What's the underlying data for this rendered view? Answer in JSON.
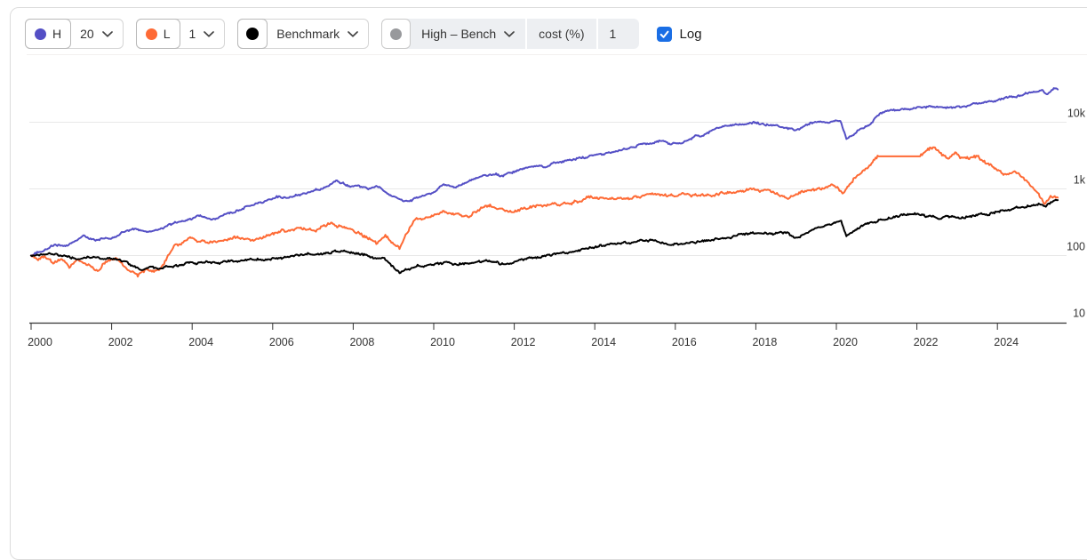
{
  "toolbar": {
    "controls": [
      {
        "id": "high",
        "letter": "H",
        "dot_color": "#544fc5",
        "value": "20"
      },
      {
        "id": "low",
        "letter": "L",
        "dot_color": "#fe6a35",
        "value": "1"
      },
      {
        "id": "benchmark",
        "label": "Benchmark",
        "dot_color": "#000000"
      },
      {
        "id": "high-minus-bench",
        "label": "High – Bench",
        "dot_color": "#98999c",
        "cost_label": "cost (%)",
        "cost_value": "1"
      }
    ],
    "log": {
      "label": "Log",
      "checked": true,
      "color": "#1a6ee5"
    }
  },
  "chart_data": {
    "type": "line",
    "log_scale": true,
    "title": "",
    "xlabel": "",
    "ylabel": "",
    "x_axis": {
      "range": [
        2000,
        2025.5
      ],
      "ticks": [
        2000,
        2002,
        2004,
        2006,
        2008,
        2010,
        2012,
        2014,
        2016,
        2018,
        2020,
        2022,
        2024
      ]
    },
    "y_axis": {
      "scale": "log",
      "side": "right",
      "range": [
        10,
        40000
      ],
      "ticks": [
        {
          "label": "10k",
          "value": 10000
        },
        {
          "label": "1k",
          "value": 1000
        },
        {
          "label": "100",
          "value": 100
        },
        {
          "label": "10",
          "value": 10
        }
      ]
    },
    "grid": true,
    "legend": "none",
    "series": [
      {
        "id": "high",
        "name": "H 20",
        "color": "#544fc5",
        "noise": 1.4,
        "anchors": [
          [
            2000.0,
            100
          ],
          [
            2000.3,
            118
          ],
          [
            2000.6,
            150
          ],
          [
            2000.9,
            140
          ],
          [
            2001.3,
            195
          ],
          [
            2001.6,
            168
          ],
          [
            2002.0,
            178
          ],
          [
            2002.3,
            225
          ],
          [
            2002.5,
            250
          ],
          [
            2002.8,
            235
          ],
          [
            2003.05,
            230
          ],
          [
            2003.4,
            280
          ],
          [
            2003.9,
            345
          ],
          [
            2004.15,
            395
          ],
          [
            2004.5,
            340
          ],
          [
            2004.9,
            430
          ],
          [
            2005.3,
            520
          ],
          [
            2005.7,
            640
          ],
          [
            2006.1,
            800
          ],
          [
            2006.4,
            750
          ],
          [
            2006.9,
            880
          ],
          [
            2007.3,
            1050
          ],
          [
            2007.6,
            1300
          ],
          [
            2007.9,
            1100
          ],
          [
            2008.1,
            1150
          ],
          [
            2008.4,
            1000
          ],
          [
            2008.65,
            1060
          ],
          [
            2008.9,
            800
          ],
          [
            2009.25,
            640
          ],
          [
            2009.5,
            700
          ],
          [
            2009.9,
            850
          ],
          [
            2010.25,
            1150
          ],
          [
            2010.55,
            1050
          ],
          [
            2011.0,
            1400
          ],
          [
            2011.45,
            1650
          ],
          [
            2011.7,
            1550
          ],
          [
            2012.1,
            1950
          ],
          [
            2012.5,
            2200
          ],
          [
            2012.75,
            2100
          ],
          [
            2013.1,
            2500
          ],
          [
            2013.6,
            2850
          ],
          [
            2014.1,
            3300
          ],
          [
            2014.7,
            3900
          ],
          [
            2015.2,
            4600
          ],
          [
            2015.6,
            5200
          ],
          [
            2015.9,
            4700
          ],
          [
            2016.2,
            5100
          ],
          [
            2016.6,
            6300
          ],
          [
            2016.95,
            8000
          ],
          [
            2017.4,
            8800
          ],
          [
            2018.05,
            9800
          ],
          [
            2018.5,
            8900
          ],
          [
            2018.95,
            7500
          ],
          [
            2019.4,
            9900
          ],
          [
            2019.9,
            10300
          ],
          [
            2020.1,
            10400
          ],
          [
            2020.25,
            5800
          ],
          [
            2020.55,
            7600
          ],
          [
            2020.85,
            9400
          ],
          [
            2021.1,
            13800
          ],
          [
            2021.5,
            15200
          ],
          [
            2021.95,
            16200
          ],
          [
            2022.4,
            17500
          ],
          [
            2022.9,
            16800
          ],
          [
            2023.3,
            18000
          ],
          [
            2023.7,
            19500
          ],
          [
            2024.1,
            22000
          ],
          [
            2024.6,
            26000
          ],
          [
            2024.9,
            28500
          ],
          [
            2025.1,
            30000
          ],
          [
            2025.22,
            26500
          ],
          [
            2025.4,
            31500
          ],
          [
            2025.5,
            31000
          ]
        ]
      },
      {
        "id": "low",
        "name": "L 1",
        "color": "#fe6a35",
        "noise": 1.9,
        "flat_ranges": [
          [
            2021.05,
            2022.08
          ]
        ],
        "anchors": [
          [
            2000.0,
            100
          ],
          [
            2000.15,
            88
          ],
          [
            2000.35,
            97
          ],
          [
            2000.55,
            76
          ],
          [
            2000.75,
            90
          ],
          [
            2000.95,
            70
          ],
          [
            2001.15,
            85
          ],
          [
            2001.45,
            72
          ],
          [
            2001.65,
            56
          ],
          [
            2001.85,
            82
          ],
          [
            2002.1,
            93
          ],
          [
            2002.4,
            66
          ],
          [
            2002.65,
            50
          ],
          [
            2002.85,
            63
          ],
          [
            2003.05,
            55
          ],
          [
            2003.2,
            65
          ],
          [
            2003.55,
            140
          ],
          [
            2003.95,
            175
          ],
          [
            2004.35,
            158
          ],
          [
            2004.75,
            168
          ],
          [
            2005.05,
            190
          ],
          [
            2005.45,
            168
          ],
          [
            2005.95,
            205
          ],
          [
            2006.35,
            235
          ],
          [
            2006.65,
            260
          ],
          [
            2007.05,
            242
          ],
          [
            2007.45,
            295
          ],
          [
            2007.75,
            272
          ],
          [
            2008.05,
            232
          ],
          [
            2008.45,
            175
          ],
          [
            2008.6,
            147
          ],
          [
            2008.8,
            200
          ],
          [
            2009.15,
            126
          ],
          [
            2009.5,
            336
          ],
          [
            2009.9,
            380
          ],
          [
            2010.25,
            456
          ],
          [
            2010.85,
            390
          ],
          [
            2011.35,
            583
          ],
          [
            2011.9,
            456
          ],
          [
            2012.5,
            549
          ],
          [
            2013.2,
            620
          ],
          [
            2013.95,
            725
          ],
          [
            2014.7,
            680
          ],
          [
            2015.4,
            870
          ],
          [
            2015.8,
            760
          ],
          [
            2016.15,
            845
          ],
          [
            2016.6,
            800
          ],
          [
            2017.3,
            870
          ],
          [
            2017.95,
            980
          ],
          [
            2018.35,
            900
          ],
          [
            2018.75,
            700
          ],
          [
            2019.15,
            900
          ],
          [
            2019.65,
            1050
          ],
          [
            2019.95,
            1150
          ],
          [
            2020.18,
            900
          ],
          [
            2020.45,
            1500
          ],
          [
            2020.75,
            1950
          ],
          [
            2020.95,
            2900
          ],
          [
            2021.05,
            3080
          ],
          [
            2022.08,
            3080
          ],
          [
            2022.3,
            3700
          ],
          [
            2022.45,
            4150
          ],
          [
            2022.6,
            3450
          ],
          [
            2022.78,
            2700
          ],
          [
            2022.95,
            3350
          ],
          [
            2023.2,
            2800
          ],
          [
            2023.5,
            3000
          ],
          [
            2023.85,
            2150
          ],
          [
            2024.15,
            1600
          ],
          [
            2024.45,
            1780
          ],
          [
            2024.75,
            1250
          ],
          [
            2025.0,
            880
          ],
          [
            2025.18,
            580
          ],
          [
            2025.32,
            760
          ],
          [
            2025.5,
            740
          ]
        ]
      },
      {
        "id": "benchmark",
        "name": "Benchmark",
        "color": "#000000",
        "noise": 1.5,
        "anchors": [
          [
            2000.0,
            100
          ],
          [
            2000.35,
            104
          ],
          [
            2000.75,
            97
          ],
          [
            2001.2,
            89
          ],
          [
            2001.55,
            95
          ],
          [
            2001.75,
            88
          ],
          [
            2002.05,
            91
          ],
          [
            2002.35,
            80
          ],
          [
            2002.75,
            58
          ],
          [
            2003.0,
            66
          ],
          [
            2003.2,
            62
          ],
          [
            2003.85,
            76
          ],
          [
            2004.5,
            79
          ],
          [
            2005.3,
            84
          ],
          [
            2006.2,
            93
          ],
          [
            2007.05,
            107
          ],
          [
            2007.8,
            117
          ],
          [
            2008.25,
            100
          ],
          [
            2008.6,
            88
          ],
          [
            2008.75,
            95
          ],
          [
            2009.15,
            53
          ],
          [
            2009.6,
            70
          ],
          [
            2010.3,
            78
          ],
          [
            2010.6,
            72
          ],
          [
            2011.3,
            86
          ],
          [
            2011.75,
            74
          ],
          [
            2012.2,
            88
          ],
          [
            2012.9,
            100
          ],
          [
            2013.9,
            133
          ],
          [
            2014.8,
            155
          ],
          [
            2015.5,
            162
          ],
          [
            2015.85,
            145
          ],
          [
            2016.25,
            155
          ],
          [
            2016.85,
            172
          ],
          [
            2017.85,
            215
          ],
          [
            2018.1,
            230
          ],
          [
            2018.45,
            215
          ],
          [
            2018.75,
            228
          ],
          [
            2018.97,
            178
          ],
          [
            2019.5,
            250
          ],
          [
            2019.95,
            300
          ],
          [
            2020.12,
            320
          ],
          [
            2020.25,
            195
          ],
          [
            2020.65,
            285
          ],
          [
            2021.1,
            345
          ],
          [
            2021.55,
            385
          ],
          [
            2021.95,
            430
          ],
          [
            2022.3,
            390
          ],
          [
            2022.55,
            350
          ],
          [
            2022.75,
            392
          ],
          [
            2023.05,
            375
          ],
          [
            2023.35,
            410
          ],
          [
            2023.65,
            435
          ],
          [
            2023.8,
            415
          ],
          [
            2024.2,
            490
          ],
          [
            2024.55,
            540
          ],
          [
            2024.8,
            570
          ],
          [
            2025.05,
            600
          ],
          [
            2025.2,
            555
          ],
          [
            2025.35,
            645
          ],
          [
            2025.5,
            680
          ]
        ]
      }
    ]
  }
}
